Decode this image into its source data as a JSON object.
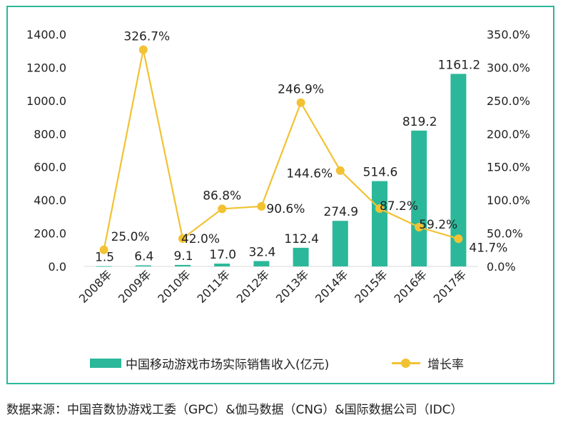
{
  "chart_data": {
    "type": "bar",
    "categories": [
      "2008年",
      "2009年",
      "2010年",
      "2011年",
      "2012年",
      "2013年",
      "2014年",
      "2015年",
      "2016年",
      "2017年"
    ],
    "series": [
      {
        "name": "中国移动游戏市场实际销售收入(亿元)",
        "type": "bar",
        "axis": "left",
        "values": [
          1.5,
          6.4,
          9.1,
          17.0,
          32.4,
          112.4,
          274.9,
          514.6,
          819.2,
          1161.2
        ],
        "labels": [
          "1.5",
          "6.4",
          "9.1",
          "17.0",
          "32.4",
          "112.4",
          "274.9",
          "514.6",
          "819.2",
          "1161.2"
        ]
      },
      {
        "name": "增长率",
        "type": "line",
        "axis": "right",
        "values": [
          25.0,
          326.7,
          42.0,
          86.8,
          90.6,
          246.9,
          144.6,
          87.2,
          59.2,
          41.7
        ],
        "labels": [
          "25.0%",
          "326.7%",
          "42.0%",
          "86.8%",
          "90.6%",
          "246.9%",
          "144.6%",
          "87.2%",
          "59.2%",
          "41.7%"
        ]
      }
    ],
    "y_left": {
      "min": 0,
      "max": 1400,
      "ticks": [
        "0.0",
        "200.0",
        "400.0",
        "600.0",
        "800.0",
        "1000.0",
        "1200.0",
        "1400.0"
      ]
    },
    "y_right": {
      "min": 0,
      "max": 350,
      "ticks": [
        "0.0%",
        "50.0%",
        "100.0%",
        "150.0%",
        "200.0%",
        "250.0%",
        "300.0%",
        "350.0%"
      ]
    },
    "colors": {
      "bar": "#2bb89a",
      "line": "#f2c233",
      "frame": "#2bb89a"
    },
    "grid": false,
    "legend_position": "bottom"
  },
  "legend": {
    "bar_label": "中国移动游戏市场实际销售收入(亿元)",
    "line_label": "增长率"
  },
  "source_text": "数据来源：中国音数协游戏工委（GPC）&伽马数据（CNG）&国际数据公司（IDC）"
}
